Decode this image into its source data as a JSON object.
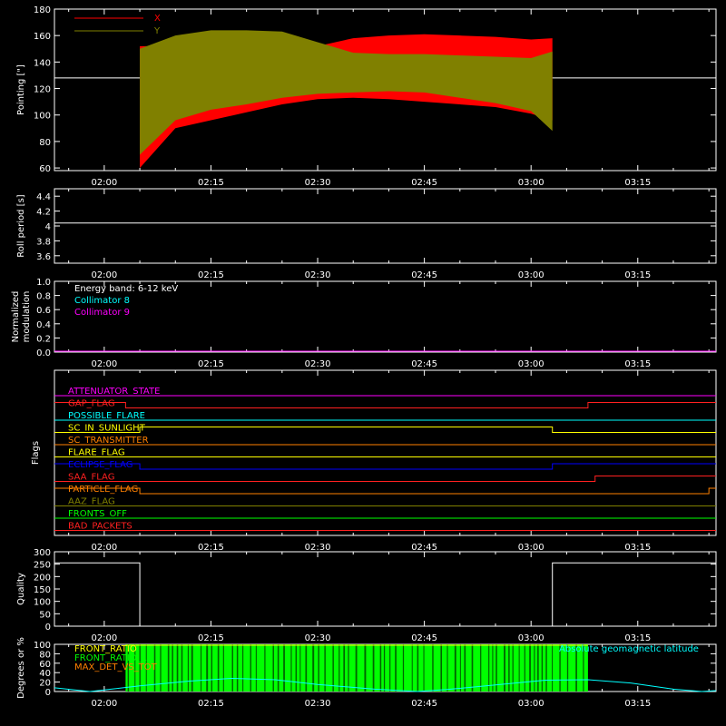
{
  "time_ticks": [
    "02:00",
    "02:15",
    "02:30",
    "02:45",
    "03:00",
    "03:15"
  ],
  "chart_data": [
    {
      "type": "area",
      "panel": "pointing",
      "ylabel": "Pointing [\"]",
      "ylim": [
        58,
        180
      ],
      "yticks": [
        60,
        80,
        100,
        120,
        140,
        160,
        180
      ],
      "x_start": "02:05",
      "x_end": "03:03",
      "reference_line": 128,
      "series": [
        {
          "name": "X",
          "color": "#ff0000",
          "x": [
            "02:05",
            "02:10",
            "02:15",
            "02:20",
            "02:25",
            "02:30",
            "02:35",
            "02:40",
            "02:45",
            "02:50",
            "02:55",
            "03:00",
            "03:03"
          ],
          "upper": [
            152,
            152,
            157,
            160,
            158,
            152,
            158,
            160,
            161,
            160,
            159,
            157,
            158
          ],
          "lower": [
            60,
            90,
            96,
            102,
            108,
            112,
            113,
            112,
            110,
            108,
            106,
            101,
            96
          ]
        },
        {
          "name": "Y",
          "color": "#808000",
          "x": [
            "02:05",
            "02:10",
            "02:15",
            "02:20",
            "02:25",
            "02:30",
            "02:35",
            "02:40",
            "02:45",
            "02:50",
            "02:55",
            "03:00",
            "03:03"
          ],
          "upper": [
            150,
            160,
            164,
            164,
            163,
            155,
            147,
            146,
            146,
            145,
            144,
            143,
            148
          ],
          "lower": [
            70,
            96,
            104,
            108,
            113,
            116,
            117,
            118,
            117,
            113,
            109,
            103,
            88
          ]
        }
      ]
    },
    {
      "type": "line",
      "panel": "roll",
      "ylabel": "Roll period [s]",
      "ylim": [
        3.5,
        4.5
      ],
      "yticks": [
        3.6,
        3.8,
        4.0,
        4.2,
        4.4
      ],
      "series": [
        {
          "color": "#ffffff",
          "x": [
            "01:53",
            "03:26"
          ],
          "values": [
            4.04,
            4.04
          ]
        }
      ]
    },
    {
      "type": "line",
      "panel": "modulation",
      "ylabel": "Normalized modulation",
      "ylim": [
        0,
        1
      ],
      "yticks": [
        0.0,
        0.2,
        0.4,
        0.6,
        0.8,
        1.0
      ],
      "annotation": "Energy band: 6-12 keV",
      "series": [
        {
          "name": "Collimator 8",
          "color": "#00ffff",
          "values": [
            0,
            0
          ]
        },
        {
          "name": "Collimator 9",
          "color": "#ff00ff",
          "values": [
            0,
            0
          ]
        }
      ]
    },
    {
      "type": "line",
      "panel": "flags",
      "ylabel": "Flags",
      "series": [
        {
          "name": "ATTENUATOR_STATE",
          "color": "#ff00ff",
          "segments": [
            [
              "01:53",
              "03:26",
              0
            ]
          ]
        },
        {
          "name": "GAP_FLAG",
          "color": "#ff2020",
          "segments": [
            [
              "01:53",
              "02:03",
              1
            ],
            [
              "02:03",
              "03:08",
              0
            ],
            [
              "03:08",
              "03:26",
              1
            ]
          ]
        },
        {
          "name": "POSSIBLE_FLARE",
          "color": "#00ffff",
          "segments": [
            [
              "01:53",
              "03:26",
              0
            ]
          ]
        },
        {
          "name": "SC_IN_SUNLIGHT",
          "color": "#ffff00",
          "segments": [
            [
              "01:53",
              "02:05",
              0
            ],
            [
              "02:05",
              "03:03",
              1
            ],
            [
              "03:03",
              "03:26",
              0
            ]
          ]
        },
        {
          "name": "SC_TRANSMITTER",
          "color": "#ff8000",
          "segments": [
            [
              "01:53",
              "03:26",
              0
            ]
          ]
        },
        {
          "name": "FLARE_FLAG",
          "color": "#ffff00",
          "segments": [
            [
              "01:53",
              "03:26",
              0
            ]
          ]
        },
        {
          "name": "ECLIPSE_FLAG",
          "color": "#0000ff",
          "segments": [
            [
              "01:53",
              "02:05",
              1
            ],
            [
              "02:05",
              "03:03",
              0
            ],
            [
              "03:03",
              "03:26",
              1
            ]
          ]
        },
        {
          "name": "SAA_FLAG",
          "color": "#ff2020",
          "segments": [
            [
              "01:53",
              "03:09",
              0
            ],
            [
              "03:09",
              "03:26",
              1
            ]
          ]
        },
        {
          "name": "PARTICLE_FLAG",
          "color": "#ff8000",
          "segments": [
            [
              "01:53",
              "02:05",
              1
            ],
            [
              "02:05",
              "03:25",
              0
            ],
            [
              "03:25",
              "03:26",
              1
            ]
          ]
        },
        {
          "name": "AAZ_FLAG",
          "color": "#808000",
          "segments": [
            [
              "01:53",
              "03:26",
              0
            ]
          ]
        },
        {
          "name": "FRONTS_OFF",
          "color": "#00ff00",
          "segments": [
            [
              "01:53",
              "03:26",
              0
            ]
          ]
        },
        {
          "name": "BAD_PACKETS",
          "color": "#ff2020",
          "segments": [
            [
              "01:53",
              "03:26",
              0
            ]
          ]
        }
      ]
    },
    {
      "type": "line",
      "panel": "quality",
      "ylabel": "Quality",
      "ylim": [
        0,
        300
      ],
      "yticks": [
        0,
        50,
        100,
        150,
        200,
        250,
        300
      ],
      "series": [
        {
          "color": "#ffffff",
          "x": [
            "01:53",
            "02:05",
            "02:05",
            "03:03",
            "03:03",
            "03:26"
          ],
          "values": [
            255,
            255,
            0,
            0,
            255,
            255
          ]
        }
      ]
    },
    {
      "type": "area",
      "panel": "front_ratio",
      "ylabel": "Degrees or %",
      "ylim": [
        0,
        100
      ],
      "yticks": [
        0,
        20,
        40,
        60,
        80,
        100
      ],
      "legend": [
        "FRONT_RATIO",
        "FRONT_RATIO_1",
        "MAX_DET_VS_TOT"
      ],
      "legend_colors": [
        "#ffff00",
        "#00ff00",
        "#ff8000"
      ],
      "right_label": "Absolute geomagnetic latitude",
      "green_band": {
        "x_start": "02:03",
        "x_end": "03:08",
        "value": 100
      },
      "series": [
        {
          "name": "Absolute geomagnetic latitude",
          "color": "#00ffff",
          "x": [
            "01:53",
            "01:58",
            "02:05",
            "02:12",
            "02:18",
            "02:24",
            "02:30",
            "02:38",
            "02:44",
            "02:48",
            "02:55",
            "03:02",
            "03:08",
            "03:14",
            "03:20",
            "03:24",
            "03:26"
          ],
          "values": [
            8,
            0,
            12,
            22,
            28,
            25,
            15,
            5,
            0,
            4,
            14,
            24,
            25,
            18,
            5,
            0,
            2
          ]
        }
      ]
    }
  ]
}
